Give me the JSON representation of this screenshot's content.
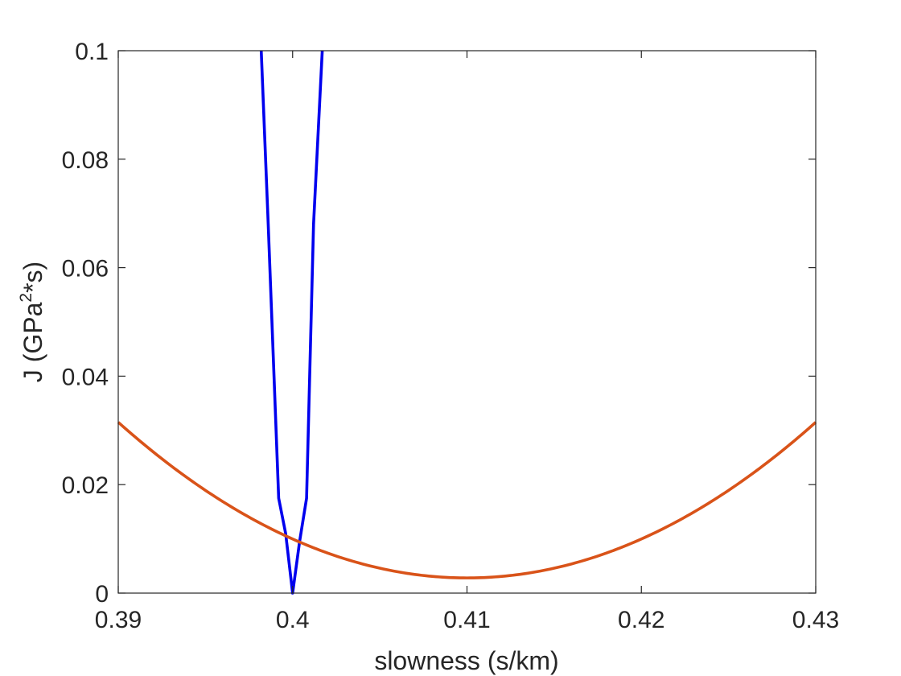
{
  "chart_data": {
    "type": "line",
    "title": "",
    "xlabel": "slowness (s/km)",
    "ylabel_parts": {
      "pre": "J (GPa",
      "sup": "2",
      "post": "*s)"
    },
    "xlim": [
      0.39,
      0.43
    ],
    "ylim": [
      0,
      0.1
    ],
    "xticks": [
      0.39,
      0.4,
      0.41,
      0.42,
      0.43
    ],
    "xtick_labels": [
      "0.39",
      "0.4",
      "0.41",
      "0.42",
      "0.43"
    ],
    "yticks": [
      0,
      0.02,
      0.04,
      0.06,
      0.08,
      0.1
    ],
    "ytick_labels": [
      "0",
      "0.02",
      "0.04",
      "0.06",
      "0.08",
      "0.1"
    ],
    "grid": false,
    "series": [
      {
        "color": "#0000ee",
        "x": [
          0.3982,
          0.3986,
          0.3992,
          0.3996,
          0.4,
          0.4004,
          0.4008,
          0.4012,
          0.4017
        ],
        "y": [
          0.1,
          0.068,
          0.0175,
          0.011,
          0.0,
          0.0095,
          0.0175,
          0.068,
          0.1
        ]
      },
      {
        "color": "#d95319",
        "curve": {
          "vertex_x": 0.41,
          "vertex_y": 0.0028,
          "coef": 71.75
        }
      }
    ]
  }
}
